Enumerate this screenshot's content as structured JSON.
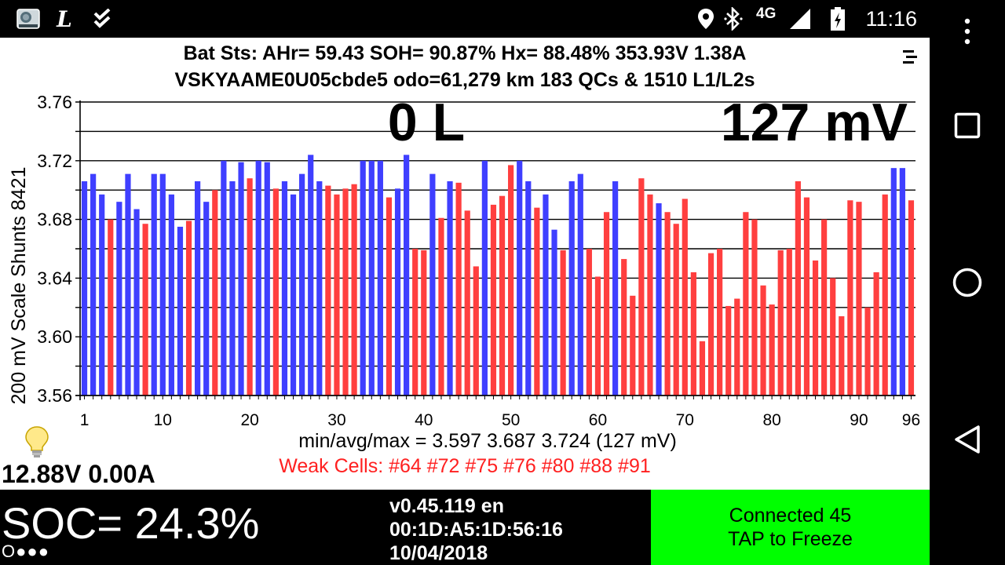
{
  "status_bar": {
    "left_icons": [
      "gallery-icon",
      "app-logo-icon",
      "checklist-icon"
    ],
    "right_icons": [
      "location-icon",
      "bluetooth-icon",
      "signal-icon",
      "battery-charging-icon"
    ],
    "network": "4G",
    "time": "11:16"
  },
  "header": {
    "line1": "Bat Sts:  AHr= 59.43  SOH= 90.87%   Hx= 88.48%   353.93V 1.38A",
    "line2": "VSKYAAME0U05cbde5 odo=61,279 km  183 QCs & 1510 L1/L2s",
    "menu_icon": "menu-icon"
  },
  "overlay": {
    "mode": "0 L",
    "spread": "127 mV"
  },
  "chart_data": {
    "type": "bar",
    "ylabel": "200 mV Scale   Shunts 8421",
    "ylim": [
      3.56,
      3.76
    ],
    "y_ticks": [
      "3.76",
      "3.72",
      "3.68",
      "3.64",
      "3.60",
      "3.56"
    ],
    "x_ticks": [
      "1",
      "10",
      "20",
      "30",
      "40",
      "50",
      "60",
      "70",
      "80",
      "90",
      "96"
    ],
    "x_tick_values": [
      1,
      10,
      20,
      30,
      40,
      50,
      60,
      70,
      80,
      90,
      96
    ],
    "colors": {
      "shunt": "#3f3fff",
      "normal": "#ff3f3f",
      "grid": "#000000"
    },
    "cells": [
      {
        "v": 3.706,
        "shunt": true
      },
      {
        "v": 3.711,
        "shunt": true
      },
      {
        "v": 3.697,
        "shunt": true
      },
      {
        "v": 3.68,
        "shunt": false
      },
      {
        "v": 3.692,
        "shunt": true
      },
      {
        "v": 3.711,
        "shunt": true
      },
      {
        "v": 3.687,
        "shunt": true
      },
      {
        "v": 3.677,
        "shunt": false
      },
      {
        "v": 3.711,
        "shunt": true
      },
      {
        "v": 3.711,
        "shunt": true
      },
      {
        "v": 3.697,
        "shunt": true
      },
      {
        "v": 3.675,
        "shunt": true
      },
      {
        "v": 3.679,
        "shunt": false
      },
      {
        "v": 3.706,
        "shunt": true
      },
      {
        "v": 3.692,
        "shunt": true
      },
      {
        "v": 3.7,
        "shunt": false
      },
      {
        "v": 3.72,
        "shunt": true
      },
      {
        "v": 3.706,
        "shunt": true
      },
      {
        "v": 3.719,
        "shunt": true
      },
      {
        "v": 3.708,
        "shunt": false
      },
      {
        "v": 3.72,
        "shunt": true
      },
      {
        "v": 3.719,
        "shunt": true
      },
      {
        "v": 3.701,
        "shunt": false
      },
      {
        "v": 3.706,
        "shunt": true
      },
      {
        "v": 3.697,
        "shunt": true
      },
      {
        "v": 3.711,
        "shunt": true
      },
      {
        "v": 3.724,
        "shunt": true
      },
      {
        "v": 3.706,
        "shunt": true
      },
      {
        "v": 3.703,
        "shunt": false
      },
      {
        "v": 3.697,
        "shunt": false
      },
      {
        "v": 3.701,
        "shunt": false
      },
      {
        "v": 3.704,
        "shunt": false
      },
      {
        "v": 3.72,
        "shunt": true
      },
      {
        "v": 3.72,
        "shunt": true
      },
      {
        "v": 3.72,
        "shunt": true
      },
      {
        "v": 3.695,
        "shunt": false
      },
      {
        "v": 3.701,
        "shunt": true
      },
      {
        "v": 3.724,
        "shunt": true
      },
      {
        "v": 3.66,
        "shunt": false
      },
      {
        "v": 3.659,
        "shunt": false
      },
      {
        "v": 3.711,
        "shunt": true
      },
      {
        "v": 3.681,
        "shunt": false
      },
      {
        "v": 3.706,
        "shunt": true
      },
      {
        "v": 3.705,
        "shunt": false
      },
      {
        "v": 3.686,
        "shunt": false
      },
      {
        "v": 3.648,
        "shunt": false
      },
      {
        "v": 3.72,
        "shunt": true
      },
      {
        "v": 3.69,
        "shunt": false
      },
      {
        "v": 3.696,
        "shunt": false
      },
      {
        "v": 3.717,
        "shunt": false
      },
      {
        "v": 3.72,
        "shunt": true
      },
      {
        "v": 3.706,
        "shunt": true
      },
      {
        "v": 3.688,
        "shunt": false
      },
      {
        "v": 3.697,
        "shunt": true
      },
      {
        "v": 3.673,
        "shunt": true
      },
      {
        "v": 3.659,
        "shunt": false
      },
      {
        "v": 3.706,
        "shunt": true
      },
      {
        "v": 3.711,
        "shunt": true
      },
      {
        "v": 3.66,
        "shunt": false
      },
      {
        "v": 3.641,
        "shunt": false
      },
      {
        "v": 3.685,
        "shunt": false
      },
      {
        "v": 3.706,
        "shunt": true
      },
      {
        "v": 3.653,
        "shunt": false
      },
      {
        "v": 3.628,
        "shunt": false
      },
      {
        "v": 3.708,
        "shunt": false
      },
      {
        "v": 3.697,
        "shunt": false
      },
      {
        "v": 3.691,
        "shunt": true
      },
      {
        "v": 3.685,
        "shunt": false
      },
      {
        "v": 3.677,
        "shunt": false
      },
      {
        "v": 3.694,
        "shunt": false
      },
      {
        "v": 3.644,
        "shunt": false
      },
      {
        "v": 3.597,
        "shunt": false
      },
      {
        "v": 3.657,
        "shunt": false
      },
      {
        "v": 3.66,
        "shunt": false
      },
      {
        "v": 3.621,
        "shunt": false
      },
      {
        "v": 3.626,
        "shunt": false
      },
      {
        "v": 3.685,
        "shunt": false
      },
      {
        "v": 3.68,
        "shunt": false
      },
      {
        "v": 3.635,
        "shunt": false
      },
      {
        "v": 3.622,
        "shunt": false
      },
      {
        "v": 3.659,
        "shunt": false
      },
      {
        "v": 3.66,
        "shunt": false
      },
      {
        "v": 3.706,
        "shunt": false
      },
      {
        "v": 3.695,
        "shunt": false
      },
      {
        "v": 3.652,
        "shunt": false
      },
      {
        "v": 3.68,
        "shunt": false
      },
      {
        "v": 3.64,
        "shunt": false
      },
      {
        "v": 3.614,
        "shunt": false
      },
      {
        "v": 3.693,
        "shunt": false
      },
      {
        "v": 3.692,
        "shunt": false
      },
      {
        "v": 3.62,
        "shunt": false
      },
      {
        "v": 3.644,
        "shunt": false
      },
      {
        "v": 3.697,
        "shunt": false
      },
      {
        "v": 3.715,
        "shunt": true
      },
      {
        "v": 3.715,
        "shunt": true
      },
      {
        "v": 3.693,
        "shunt": false
      }
    ]
  },
  "stats": {
    "min_avg_max": "min/avg/max = 3.597 3.687 3.724  (127 mV)",
    "weak_cells": "Weak Cells:  #64 #72 #75 #76 #80 #88 #91"
  },
  "aux_battery": {
    "icon": "lightbulb-icon",
    "text": "12.88V 0.00A"
  },
  "bottom": {
    "soc": "SOC= 24.3%",
    "dots": "O●●●",
    "version": "v0.45.119 en",
    "mac": "00:1D:A5:1D:56:16",
    "date": "10/04/2018",
    "connected_line1": "Connected 45",
    "connected_line2": "TAP to Freeze",
    "connected_color": "#00ff00"
  }
}
